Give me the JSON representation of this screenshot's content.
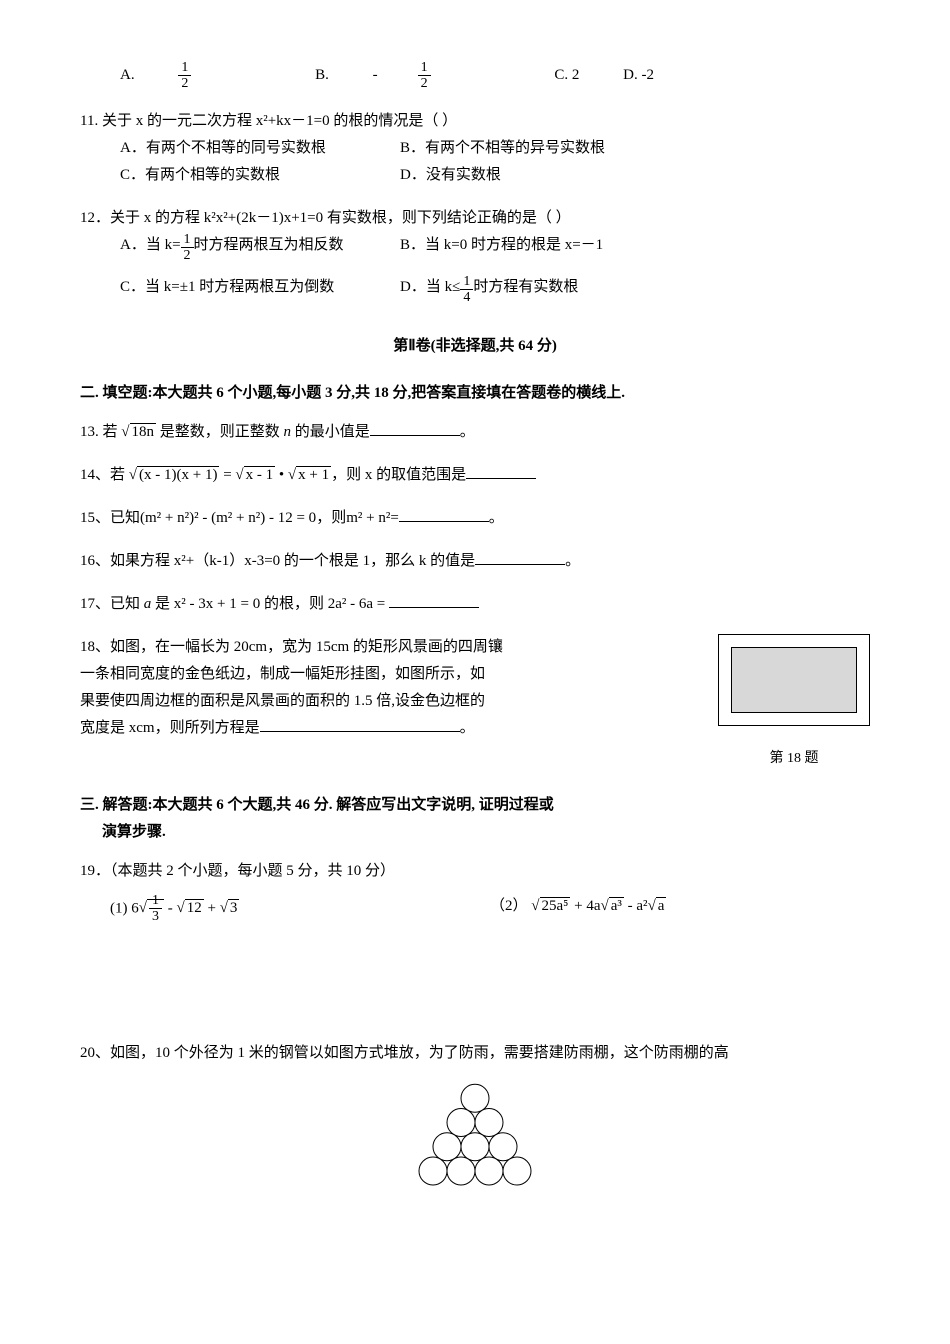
{
  "q10": {
    "options": {
      "a_label": "A.",
      "a_num": "1",
      "a_den": "2",
      "b_label": "B.",
      "b_prefix": "-",
      "b_num": "1",
      "b_den": "2",
      "c": "C. 2",
      "d": "D. -2"
    }
  },
  "q11": {
    "stem": "11. 关于 x 的一元二次方程 x²+kx－1=0 的根的情况是（    ）",
    "opt_a": "A．有两个不相等的同号实数根",
    "opt_b": "B．有两个不相等的异号实数根",
    "opt_c": "C．有两个相等的实数根",
    "opt_d": "D．没有实数根"
  },
  "q12": {
    "stem": "12．关于 x 的方程 k²x²+(2k－1)x+1=0 有实数根，则下列结论正确的是（    ）",
    "opt_a_prefix": "A．当 k=",
    "opt_a_num": "1",
    "opt_a_den": "2",
    "opt_a_suffix": "时方程两根互为相反数",
    "opt_b": "B．当 k=0 时方程的根是 x=－1",
    "opt_c": "C．当 k=±1 时方程两根互为倒数",
    "opt_d_prefix": "D．当 k≤",
    "opt_d_num": "1",
    "opt_d_den": "4",
    "opt_d_suffix": "时方程有实数根"
  },
  "section2_title": "第Ⅱ卷(非选择题,共 64 分)",
  "fill_heading": "二. 填空题:本大题共 6 个小题,每小题 3 分,共 18 分,把答案直接填在答题卷的横线上.",
  "q13": {
    "prefix": "13. 若 ",
    "rad": "18n",
    "mid": " 是整数，则正整数 ",
    "var": "n",
    "suffix": " 的最小值是",
    "end": "。"
  },
  "q14": {
    "prefix": "14、若 ",
    "rad1": "(x - 1)(x + 1)",
    "eq": " = ",
    "rad2": "x - 1",
    "dot": " • ",
    "rad3": "x + 1",
    "suffix": "，则 x 的取值范围是"
  },
  "q15": {
    "prefix": "15、已知",
    "expr": "(m² + n²)² - (m² + n²) - 12 = 0",
    "mid": "，则",
    "target": "m² + n²",
    "eq": "=",
    "end": "。"
  },
  "q16": {
    "text": "16、如果方程 x²+（k-1）x-3=0 的一个根是 1，那么 k 的值是",
    "end": "。"
  },
  "q17": {
    "prefix": "17、已知",
    "a": "a",
    "is": "是",
    "expr": "x² - 3x + 1 = 0",
    "mid": "的根，则",
    "target": "2a² - 6a =",
    "blank": ""
  },
  "q18": {
    "line1": "18、如图，在一幅长为 20cm，宽为 15cm 的矩形风景画的四周镶",
    "line2": "一条相同宽度的金色纸边，制成一幅矩形挂图，如图所示，如",
    "line3": "果要使四周边框的面积是风景画的面积的 1.5 倍,设金色边框的",
    "line4": "宽度是 xcm，则所列方程是",
    "end": "。",
    "caption": "第 18 题"
  },
  "solve_heading": "三. 解答题:本大题共 6 个大题,共 46 分. 解答应写出文字说明, 证明过程或",
  "solve_heading2": "演算步骤.",
  "q19": {
    "stem": "19．（本题共 2 个小题，每小题 5 分，共 10 分）",
    "p1_label": "(1)",
    "p1_coef": "6",
    "p1_frac_num": "1",
    "p1_frac_den": "3",
    "p1_minus": " - ",
    "p1_rad2": "12",
    "p1_plus": " + ",
    "p1_rad3": "3",
    "p2_label": "（2）",
    "p2_rad1": "25a⁵",
    "p2_plus1": " + 4a",
    "p2_rad2": "a³",
    "p2_minus": " - a²",
    "p2_rad3": "a"
  },
  "q20": {
    "text": "20、如图，10 个外径为 1 米的钢管以如图方式堆放，为了防雨，需要搭建防雨棚，这个防雨棚的高"
  },
  "figure": {
    "outer_w": 150,
    "outer_h": 90,
    "border_color": "#000000",
    "fill_color": "#d8d8d8"
  },
  "circles": {
    "rows": [
      1,
      2,
      3,
      4
    ],
    "radius": 14,
    "stroke": "#000000",
    "fill": "#ffffff"
  }
}
